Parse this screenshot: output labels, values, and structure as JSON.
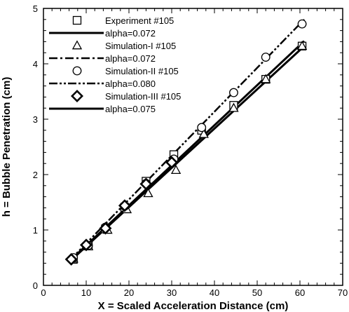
{
  "chart_data": {
    "type": "scatter",
    "xlabel": "X = Scaled Acceleration Distance (cm)",
    "ylabel": "h = Bubble Penetration (cm)",
    "xlim": [
      0,
      70
    ],
    "ylim": [
      0,
      5
    ],
    "xticks": [
      0,
      10,
      20,
      30,
      40,
      50,
      60,
      70
    ],
    "yticks": [
      0,
      1,
      2,
      3,
      4,
      5
    ],
    "xtick_labels": [
      "0",
      "10",
      "20",
      "30",
      "40",
      "50",
      "60",
      "70"
    ],
    "ytick_labels": [
      "0",
      "1",
      "2",
      "3",
      "4",
      "5"
    ],
    "minor_ticks": true,
    "grid": false,
    "legend_position": "top-left",
    "colors": {
      "ink": "#000000",
      "background": "#ffffff"
    },
    "series": [
      {
        "name": "Experiment #105",
        "kind": "markers",
        "marker": "square",
        "x": [
          7,
          10.5,
          14.5,
          19,
          24,
          30.5,
          37,
          44.5,
          52,
          60.5
        ],
        "y": [
          0.47,
          0.72,
          1.02,
          1.41,
          1.88,
          2.36,
          2.8,
          3.25,
          3.72,
          4.32
        ]
      },
      {
        "name": "alpha=0.072",
        "kind": "line",
        "dash": "solid",
        "width": 3,
        "x": [
          6,
          61
        ],
        "y": [
          0.42,
          4.32
        ]
      },
      {
        "name": "Simulation-I #105",
        "kind": "markers",
        "marker": "triangle",
        "x": [
          7,
          10.5,
          15,
          19.5,
          24.5,
          31,
          37.5,
          44.5,
          52,
          60.5
        ],
        "y": [
          0.48,
          0.7,
          1.0,
          1.37,
          1.66,
          2.08,
          2.73,
          3.2,
          3.72,
          4.32
        ]
      },
      {
        "name": "alpha=0.072",
        "kind": "line",
        "dash": "dashdot",
        "width": 2.5,
        "x": [
          6,
          61
        ],
        "y": [
          0.42,
          4.32
        ]
      },
      {
        "name": "Simulation-II #105",
        "kind": "markers",
        "marker": "circle",
        "x": [
          7,
          10.5,
          14.5,
          19,
          24,
          30.5,
          37,
          44.5,
          52,
          60.5
        ],
        "y": [
          0.5,
          0.72,
          1.05,
          1.43,
          1.84,
          2.28,
          2.85,
          3.48,
          4.12,
          4.72
        ]
      },
      {
        "name": "alpha=0.080",
        "kind": "line",
        "dash": "dashdotdot",
        "width": 2.5,
        "x": [
          6,
          61
        ],
        "y": [
          0.44,
          4.8
        ]
      },
      {
        "name": "Simulation-III #105",
        "kind": "markers",
        "marker": "diamond",
        "x": [
          6.5,
          10,
          14.5,
          19,
          24,
          30
        ],
        "y": [
          0.47,
          0.73,
          1.03,
          1.44,
          1.83,
          2.22
        ]
      },
      {
        "name": "alpha=0.075",
        "kind": "line",
        "dash": "solid",
        "width": 3,
        "x": [
          6,
          61
        ],
        "y": [
          0.43,
          4.41
        ]
      }
    ]
  }
}
